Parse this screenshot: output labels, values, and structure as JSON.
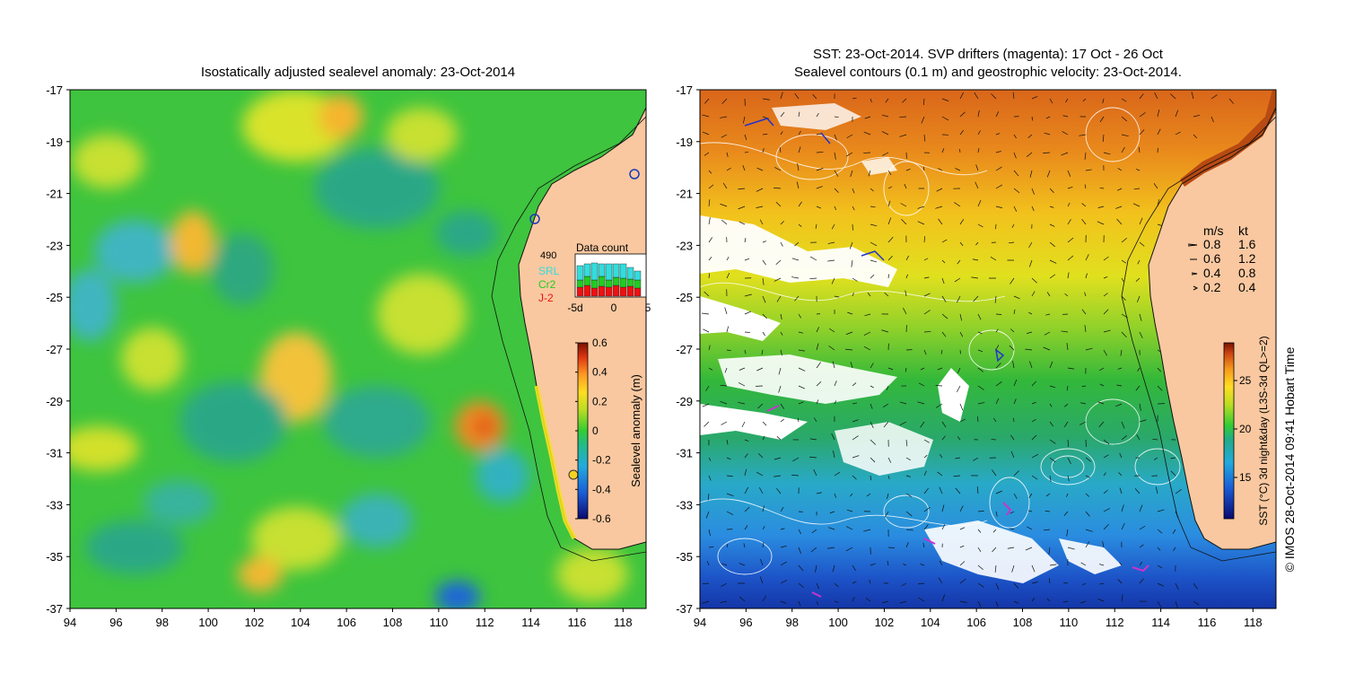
{
  "left_panel": {
    "title": "Isostatically adjusted sealevel anomaly: 23-Oct-2014",
    "data_count": {
      "label": "Data count",
      "total": "490",
      "missions": [
        {
          "name": "SRL",
          "color": "#33dddd"
        },
        {
          "name": "Cr2",
          "color": "#22cc22"
        },
        {
          "name": "J-2",
          "color": "#ee1111"
        }
      ],
      "x_ticks": [
        "-5d",
        "0",
        "5"
      ]
    },
    "colorbar": {
      "label": "Sealevel anomaly (m)",
      "ticks": [
        "0.6",
        "0.4",
        "0.2",
        "0",
        "-0.2",
        "-0.4",
        "-0.6"
      ]
    }
  },
  "right_panel": {
    "title_line1": "SST: 23-Oct-2014. SVP drifters (magenta): 17 Oct - 26 Oct",
    "title_line2": "Sealevel contours (0.1 m) and geostrophic velocity: 23-Oct-2014.",
    "velocity_legend": {
      "header_ms": "m/s",
      "header_kt": "kt",
      "rows": [
        {
          "ms": "0.8",
          "kt": "1.6"
        },
        {
          "ms": "0.6",
          "kt": "1.2"
        },
        {
          "ms": "0.4",
          "kt": "0.8"
        },
        {
          "ms": "0.2",
          "kt": "0.4"
        }
      ]
    },
    "colorbar": {
      "label": "SST (°C) 3d night&day (L3S-3d QL>=2)",
      "ticks": [
        "25",
        "20",
        "15"
      ]
    }
  },
  "axes": {
    "lat_ticks": [
      "-17",
      "-19",
      "-21",
      "-23",
      "-25",
      "-27",
      "-29",
      "-31",
      "-33",
      "-35",
      "-37"
    ],
    "lon_ticks": [
      "94",
      "96",
      "98",
      "100",
      "102",
      "104",
      "106",
      "108",
      "110",
      "112",
      "114",
      "116",
      "118"
    ]
  },
  "credit": "© IMOS 28-Oct-2014 09:41 Hobart Time",
  "colors": {
    "land": "#f9c8a0",
    "sla_base": "#3dc43d",
    "sst_warm": "#e98a1c",
    "sst_cold": "#1e5fd0",
    "drifters": "#cc33cc"
  }
}
